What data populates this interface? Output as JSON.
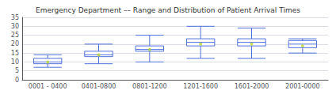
{
  "chart_data": {
    "type": "box",
    "title": "Emergency Department –– Range and Distribution of Patient Arrival Times",
    "categories": [
      "0001 - 0400",
      "0401-0800",
      "0801-1200",
      "1201-1600",
      "1601-2000",
      "2001-0000"
    ],
    "boxes": [
      {
        "whisker_low": 7,
        "q1": 9,
        "median": 10,
        "q3": 12,
        "whisker_high": 14,
        "mean": 10
      },
      {
        "whisker_low": 9,
        "q1": 13,
        "median": 14,
        "q3": 16,
        "whisker_high": 20,
        "mean": 14
      },
      {
        "whisker_low": 10,
        "q1": 16,
        "median": 17,
        "q3": 19,
        "whisker_high": 25,
        "mean": 17
      },
      {
        "whisker_low": 12,
        "q1": 19,
        "median": 21,
        "q3": 23,
        "whisker_high": 30,
        "mean": 20
      },
      {
        "whisker_low": 12,
        "q1": 19,
        "median": 21,
        "q3": 23,
        "whisker_high": 29,
        "mean": 20
      },
      {
        "whisker_low": 15,
        "q1": 18,
        "median": 20,
        "q3": 22,
        "whisker_high": 23,
        "mean": 19
      }
    ],
    "ylim": [
      0,
      35
    ],
    "yticks": [
      0,
      5,
      10,
      15,
      20,
      25,
      30,
      35
    ],
    "grid": true
  }
}
